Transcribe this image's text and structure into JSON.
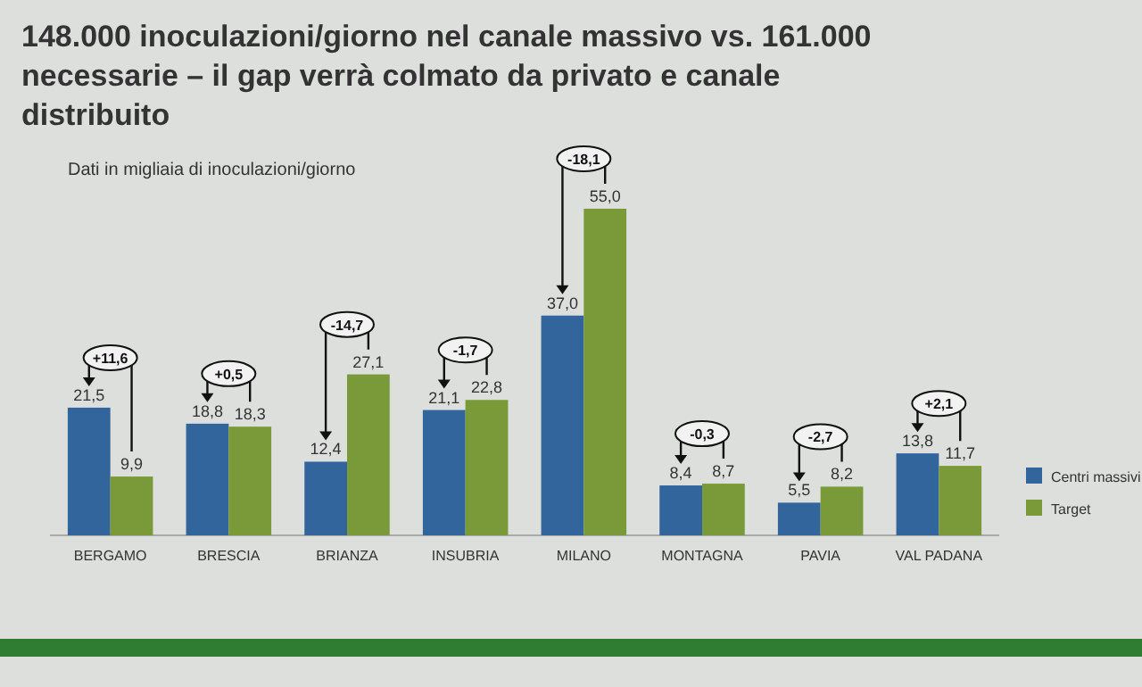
{
  "chart_data": {
    "type": "bar",
    "title": "148.000 inoculazioni/giorno nel canale massivo vs. 161.000 necessarie – il gap verrà colmato da privato e canale distribuito",
    "subtitle": "Dati in migliaia di inoculazioni/giorno",
    "categories": [
      "BERGAMO",
      "BRESCIA",
      "BRIANZA",
      "INSUBRIA",
      "MILANO",
      "MONTAGNA",
      "PAVIA",
      "VAL PADANA"
    ],
    "series": [
      {
        "name": "Centri massivi",
        "color": "#31659c",
        "values": [
          21.5,
          18.8,
          12.4,
          21.1,
          37.0,
          8.4,
          5.5,
          13.8
        ],
        "value_labels": [
          "21,5",
          "18,8",
          "12,4",
          "21,1",
          "37,0",
          "8,4",
          "5,5",
          "13,8"
        ]
      },
      {
        "name": "Target",
        "color": "#7a9a3a",
        "values": [
          9.9,
          18.3,
          27.1,
          22.8,
          55.0,
          8.7,
          8.2,
          11.7
        ],
        "value_labels": [
          "9,9",
          "18,3",
          "27,1",
          "22,8",
          "55,0",
          "8,7",
          "8,2",
          "11,7"
        ]
      }
    ],
    "annotations": [
      {
        "text": "+11,6",
        "x": "BERGAMO",
        "y": 21.5
      },
      {
        "text": "+0,5",
        "x": "BRESCIA",
        "y": 18.8
      },
      {
        "text": "-14,7",
        "x": "BRIANZA",
        "y": 27.1
      },
      {
        "text": "-1,7",
        "x": "INSUBRIA",
        "y": 22.8
      },
      {
        "text": "-18,1",
        "x": "MILANO",
        "y": 55.0
      },
      {
        "text": "-0,3",
        "x": "MONTAGNA",
        "y": 8.7
      },
      {
        "text": "-2,7",
        "x": "PAVIA",
        "y": 8.2
      },
      {
        "text": "+2,1",
        "x": "VAL PADANA",
        "y": 13.8
      }
    ],
    "legend": "bottom right"
  }
}
